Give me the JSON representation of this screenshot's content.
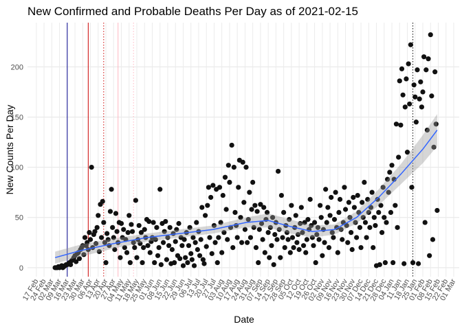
{
  "chart_data": {
    "type": "scatter",
    "title": "New Confirmed and Probable Deaths Per Day as of 2021-02-15",
    "x_label": "Date",
    "y_label": "New Counts Per Day",
    "xlim": [
      -8,
      383
    ],
    "ylim": [
      -9,
      244
    ],
    "yticks": [
      0,
      50,
      100,
      150,
      200
    ],
    "xticks": [
      {
        "value": 0,
        "label": "17 Feb"
      },
      {
        "value": 7,
        "label": "24 Feb"
      },
      {
        "value": 14,
        "label": "02 Mar"
      },
      {
        "value": 21,
        "label": "09 Mar"
      },
      {
        "value": 28,
        "label": "16 Mar"
      },
      {
        "value": 35,
        "label": "23 Mar"
      },
      {
        "value": 42,
        "label": "30 Mar"
      },
      {
        "value": 49,
        "label": "06 Apr"
      },
      {
        "value": 56,
        "label": "13 Apr"
      },
      {
        "value": 63,
        "label": "20 Apr"
      },
      {
        "value": 70,
        "label": "27 Apr"
      },
      {
        "value": 77,
        "label": "04 May"
      },
      {
        "value": 84,
        "label": "11 May"
      },
      {
        "value": 91,
        "label": "18 May"
      },
      {
        "value": 98,
        "label": "25 May"
      },
      {
        "value": 105,
        "label": "01 Jun"
      },
      {
        "value": 112,
        "label": "08 Jun"
      },
      {
        "value": 119,
        "label": "15 Jun"
      },
      {
        "value": 126,
        "label": "22 Jun"
      },
      {
        "value": 133,
        "label": "29 Jun"
      },
      {
        "value": 140,
        "label": "06 Jul"
      },
      {
        "value": 147,
        "label": "13 Jul"
      },
      {
        "value": 154,
        "label": "20 Jul"
      },
      {
        "value": 161,
        "label": "27 Jul"
      },
      {
        "value": 168,
        "label": "03 Aug"
      },
      {
        "value": 175,
        "label": "10 Aug"
      },
      {
        "value": 182,
        "label": "17 Aug"
      },
      {
        "value": 189,
        "label": "24 Aug"
      },
      {
        "value": 196,
        "label": "31 Aug"
      },
      {
        "value": 203,
        "label": "07 Sep"
      },
      {
        "value": 210,
        "label": "14 Sep"
      },
      {
        "value": 217,
        "label": "21 Sep"
      },
      {
        "value": 224,
        "label": "28 Sep"
      },
      {
        "value": 231,
        "label": "05 Oct"
      },
      {
        "value": 238,
        "label": "12 Oct"
      },
      {
        "value": 245,
        "label": "19 Oct"
      },
      {
        "value": 252,
        "label": "26 Oct"
      },
      {
        "value": 259,
        "label": "02 Nov"
      },
      {
        "value": 266,
        "label": "09 Nov"
      },
      {
        "value": 273,
        "label": "16 Nov"
      },
      {
        "value": 280,
        "label": "23 Nov"
      },
      {
        "value": 287,
        "label": "30 Nov"
      },
      {
        "value": 294,
        "label": "07 Dec"
      },
      {
        "value": 301,
        "label": "14 Dec"
      },
      {
        "value": 308,
        "label": "21 Dec"
      },
      {
        "value": 315,
        "label": "28 Dec"
      },
      {
        "value": 322,
        "label": "04 Jan"
      },
      {
        "value": 329,
        "label": "11 Jan"
      },
      {
        "value": 336,
        "label": "18 Jan"
      },
      {
        "value": 343,
        "label": "25 Jan"
      },
      {
        "value": 350,
        "label": "01 Feb"
      },
      {
        "value": 357,
        "label": "08 Feb"
      },
      {
        "value": 364,
        "label": "15 Feb"
      },
      {
        "value": 371,
        "label": "22 Feb"
      },
      {
        "value": 378,
        "label": "01 Mar"
      }
    ],
    "grid": true,
    "series": [
      {
        "color": "#111111",
        "x": [
          17,
          18,
          19,
          20,
          21,
          22,
          23,
          24,
          25,
          26,
          27,
          28,
          29,
          30,
          31,
          32,
          33,
          34,
          35,
          36,
          37,
          38,
          39,
          40,
          41,
          42,
          43,
          44,
          45,
          46,
          47,
          48,
          49,
          50,
          51,
          52,
          53,
          54,
          55,
          56,
          57,
          58,
          59,
          60,
          61,
          62,
          63,
          64,
          65,
          66,
          67,
          68,
          69,
          70,
          71,
          72,
          73,
          74,
          75,
          76,
          77,
          78,
          79,
          80,
          81,
          82,
          83,
          84,
          85,
          86,
          87,
          88,
          89,
          90,
          91,
          92,
          93,
          94,
          95,
          96,
          97,
          98,
          99,
          100,
          101,
          102,
          103,
          104,
          105,
          106,
          107,
          108,
          109,
          110,
          111,
          112,
          113,
          114,
          115,
          116,
          117,
          118,
          119,
          120,
          121,
          122,
          123,
          124,
          125,
          126,
          127,
          128,
          129,
          130,
          131,
          132,
          133,
          134,
          135,
          136,
          137,
          138,
          139,
          140,
          141,
          142,
          143,
          144,
          145,
          146,
          147,
          148,
          149,
          150,
          151,
          152,
          153,
          154,
          155,
          156,
          157,
          158,
          159,
          160,
          161,
          162,
          163,
          164,
          165,
          166,
          167,
          168,
          169,
          170,
          171,
          172,
          173,
          174,
          175,
          176,
          177,
          178,
          179,
          180,
          181,
          182,
          183,
          184,
          185,
          186,
          187,
          188,
          189,
          190,
          191,
          192,
          193,
          194,
          195,
          196,
          197,
          198,
          199,
          200,
          201,
          202,
          203,
          204,
          205,
          206,
          207,
          208,
          209,
          210,
          211,
          212,
          213,
          214,
          215,
          216,
          217,
          218,
          219,
          220,
          221,
          222,
          223,
          224,
          225,
          226,
          227,
          228,
          229,
          230,
          231,
          232,
          233,
          234,
          235,
          236,
          237,
          238,
          239,
          240,
          241,
          242,
          243,
          244,
          245,
          246,
          247,
          248,
          249,
          250,
          251,
          252,
          253,
          254,
          255,
          256,
          257,
          258,
          259,
          260,
          261,
          262,
          263,
          264,
          265,
          266,
          267,
          268,
          269,
          270,
          271,
          272,
          273,
          274,
          275,
          276,
          277,
          278,
          279,
          280,
          281,
          282,
          283,
          284,
          285,
          286,
          287,
          288,
          289,
          290,
          291,
          292,
          293,
          294,
          295,
          296,
          297,
          298,
          299,
          300,
          301,
          302,
          303,
          304,
          305,
          306,
          307,
          308,
          309,
          310,
          311,
          312,
          313,
          314,
          315,
          316,
          317,
          318,
          319,
          320,
          321,
          322,
          323,
          324,
          325,
          326,
          327,
          328,
          329,
          330,
          331,
          332,
          333,
          334,
          335,
          336,
          337,
          338,
          339,
          340,
          341,
          342,
          343,
          344,
          345,
          346,
          347,
          348,
          349,
          350,
          351,
          352,
          353,
          354,
          355,
          356,
          357,
          358,
          359,
          360,
          361,
          362,
          363
        ],
        "values": [
          0,
          0,
          0,
          1,
          0,
          1,
          2,
          0,
          1,
          2,
          3,
          3,
          4,
          5,
          3,
          7,
          8,
          10,
          12,
          6,
          14,
          15,
          9,
          18,
          20,
          22,
          13,
          30,
          22,
          25,
          18,
          35,
          28,
          100,
          20,
          33,
          36,
          24,
          40,
          52,
          16,
          63,
          30,
          66,
          45,
          25,
          5,
          34,
          28,
          22,
          56,
          78,
          40,
          30,
          18,
          54,
          36,
          25,
          45,
          10,
          44,
          30,
          38,
          20,
          28,
          15,
          35,
          52,
          5,
          43,
          36,
          25,
          20,
          67,
          10,
          28,
          42,
          24,
          35,
          5,
          20,
          38,
          30,
          48,
          22,
          46,
          15,
          26,
          30,
          45,
          5,
          28,
          40,
          12,
          20,
          78,
          3,
          44,
          25,
          36,
          46,
          8,
          30,
          22,
          40,
          4,
          18,
          34,
          5,
          26,
          38,
          12,
          44,
          9,
          30,
          22,
          2,
          28,
          10,
          35,
          5,
          22,
          40,
          14,
          8,
          30,
          2,
          25,
          45,
          18,
          36,
          12,
          28,
          60,
          8,
          4,
          52,
          21,
          62,
          80,
          30,
          70,
          14,
          82,
          42,
          25,
          78,
          5,
          30,
          80,
          45,
          15,
          72,
          35,
          90,
          58,
          28,
          102,
          85,
          40,
          122,
          20,
          100,
          55,
          42,
          30,
          80,
          107,
          50,
          25,
          105,
          65,
          38,
          100,
          25,
          48,
          75,
          30,
          58,
          85,
          40,
          62,
          20,
          56,
          5,
          38,
          63,
          44,
          28,
          60,
          15,
          48,
          55,
          35,
          10,
          40,
          22,
          50,
          3,
          33,
          45,
          28,
          96,
          38,
          10,
          72,
          30,
          55,
          20,
          42,
          35,
          28,
          48,
          15,
          62,
          30,
          20,
          40,
          52,
          25,
          33,
          18,
          44,
          60,
          35,
          22,
          45,
          15,
          28,
          48,
          38,
          68,
          42,
          30,
          22,
          45,
          5,
          33,
          40,
          28,
          62,
          50,
          12,
          38,
          25,
          78,
          45,
          60,
          20,
          52,
          70,
          35,
          30,
          48,
          75,
          40,
          15,
          55,
          68,
          38,
          28,
          45,
          80,
          58,
          42,
          25,
          65,
          50,
          35,
          18,
          70,
          60,
          45,
          30,
          72,
          55,
          40,
          20,
          65,
          50,
          85,
          45,
          30,
          68,
          55,
          40,
          60,
          75,
          20,
          50,
          42,
          2,
          68,
          55,
          3,
          62,
          35,
          80,
          50,
          5,
          45,
          88,
          75,
          95,
          55,
          102,
          5,
          88,
          62,
          143,
          40,
          110,
          186,
          142,
          198,
          172,
          4,
          160,
          188,
          115,
          203,
          163,
          222,
          80,
          5,
          182,
          170,
          145,
          197,
          4,
          168,
          185,
          160,
          175,
          210,
          45,
          197,
          137,
          208,
          12,
          232,
          171,
          28,
          120,
          195,
          143,
          57
        ]
      }
    ],
    "smooth": {
      "color": "#3366ff",
      "band_color": "#999999",
      "x": [
        17,
        40,
        70,
        100,
        130,
        160,
        190,
        210,
        230,
        250,
        270,
        290,
        310,
        330,
        350,
        363
      ],
      "values": [
        10,
        17,
        24,
        30,
        34,
        38,
        45,
        47,
        41,
        36,
        38,
        50,
        70,
        93,
        118,
        137
      ],
      "lower": [
        4,
        11,
        19,
        26,
        30,
        34,
        40,
        40,
        34,
        30,
        33,
        44,
        62,
        83,
        104,
        121
      ],
      "upper": [
        16,
        23,
        29,
        34,
        38,
        42,
        50,
        54,
        48,
        42,
        43,
        56,
        78,
        103,
        132,
        153
      ]
    },
    "vlines": [
      {
        "x": 28,
        "color": "#00008b",
        "linetype": "solid"
      },
      {
        "x": 47,
        "color": "#cc0000",
        "linetype": "solid"
      },
      {
        "x": 61,
        "color": "#cc0000",
        "linetype": "dotted"
      },
      {
        "x": 74,
        "color": "#ffb6c1",
        "linetype": "solid"
      },
      {
        "x": 88,
        "color": "#ffb6c1",
        "linetype": "dotted"
      },
      {
        "x": 341,
        "color": "#000000",
        "linetype": "dotted"
      }
    ]
  }
}
